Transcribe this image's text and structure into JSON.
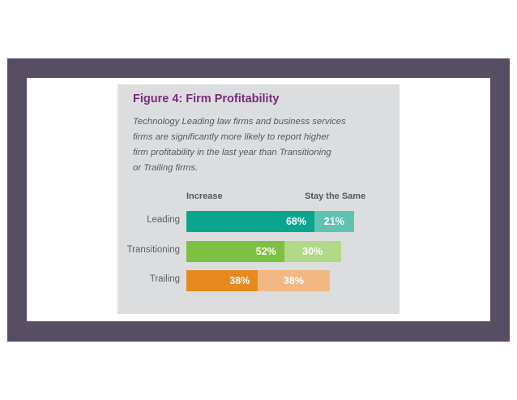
{
  "chart_data": {
    "type": "bar",
    "stacked": true,
    "orientation": "horizontal",
    "title": "Figure 4: Firm Profitability",
    "subtitle_lines": [
      "Technology Leading law firms and business services",
      "firms are significantly more likely to report higher",
      "firm profitability in the last year than Transitioning",
      "or Trailing firms."
    ],
    "categories": [
      "Leading",
      "Transitioning",
      "Trailing"
    ],
    "series": [
      {
        "name": "Increase",
        "values": [
          68,
          52,
          38
        ],
        "labels": [
          "68%",
          "52%",
          "38%"
        ]
      },
      {
        "name": "Stay the Same",
        "values": [
          21,
          30,
          38
        ],
        "labels": [
          "21%",
          "30%",
          "38%"
        ]
      }
    ],
    "colors": {
      "Leading": [
        "#0aa58f",
        "#5fc3b2"
      ],
      "Transitioning": [
        "#7dc142",
        "#b1d987"
      ],
      "Trailing": [
        "#e8891e",
        "#f2b884"
      ]
    },
    "frame_color": "#574e63",
    "card_color": "#dcdddf",
    "title_color": "#7b2a7e"
  }
}
